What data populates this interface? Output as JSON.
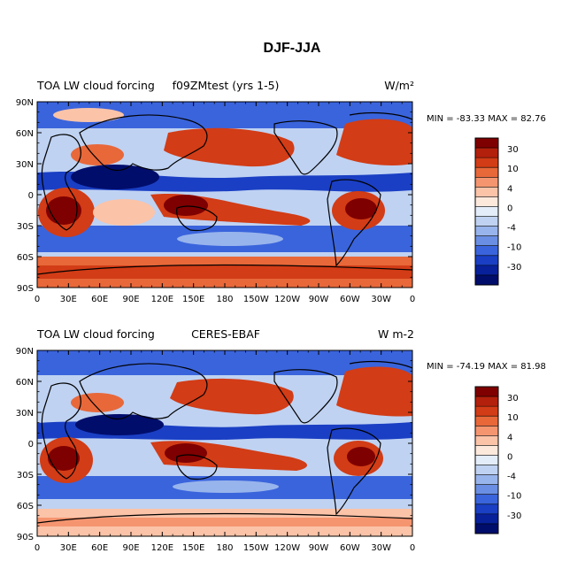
{
  "figure_title": "DJF-JJA",
  "panels": [
    {
      "left_title": "TOA LW cloud forcing",
      "center_title": "f09ZMtest (yrs 1-5)",
      "units_label": "W/m²",
      "min_label": "MIN = ",
      "min_value": "-83.33",
      "max_label": " MAX = ",
      "max_value": "82.76"
    },
    {
      "left_title": "TOA LW cloud forcing",
      "center_title": "CERES-EBAF",
      "units_label": "W m-2",
      "min_label": "MIN = ",
      "min_value": "-74.19",
      "max_label": " MAX = ",
      "max_value": "81.98"
    }
  ],
  "axes": {
    "x_ticks": [
      "0",
      "30E",
      "60E",
      "90E",
      "120E",
      "150E",
      "180",
      "150W",
      "120W",
      "90W",
      "60W",
      "30W",
      "0"
    ],
    "y_ticks": [
      "90N",
      "60N",
      "30N",
      "0",
      "30S",
      "60S",
      "90S"
    ]
  },
  "colorbar": {
    "labels": [
      "30",
      "10",
      "4",
      "0",
      "-4",
      "-10",
      "-30"
    ],
    "colors": [
      "#7f0000",
      "#b3200c",
      "#d23c16",
      "#e8683a",
      "#f59570",
      "#fbc3a8",
      "#fde8dc",
      "#e3ecf9",
      "#bfd2f2",
      "#98b4ec",
      "#6a8ee3",
      "#3a64dc",
      "#1a3fc4",
      "#08209a",
      "#000d6b"
    ]
  },
  "chart_data": {
    "type": "heatmap",
    "title": "DJF-JJA",
    "x": [
      "0",
      "30E",
      "60E",
      "90E",
      "120E",
      "150E",
      "180",
      "150W",
      "120W",
      "90W",
      "60W",
      "30W",
      "0"
    ],
    "y": [
      "90N",
      "60N",
      "30N",
      "0",
      "30S",
      "60S",
      "90S"
    ],
    "levels": [
      -30,
      -10,
      -4,
      0,
      4,
      10,
      30
    ],
    "panels": [
      {
        "name": "f09ZMtest (yrs 1-5)",
        "min": -83.33,
        "max": 82.76
      },
      {
        "name": "CERES-EBAF",
        "min": -74.19,
        "max": 81.98
      }
    ]
  }
}
